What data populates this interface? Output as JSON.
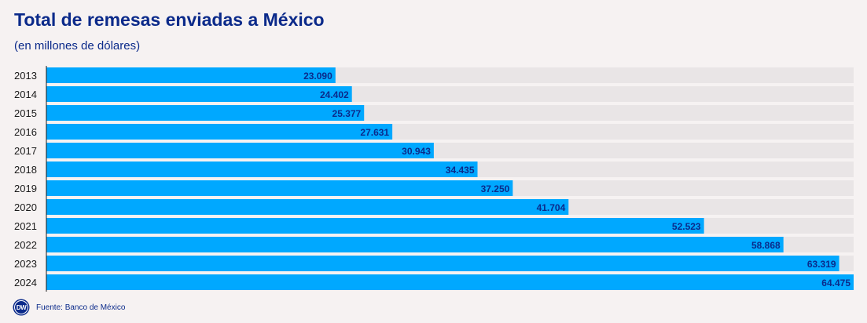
{
  "header": {
    "title": "Total de remesas enviadas a México",
    "subtitle": "(en millones de dólares)"
  },
  "footer": {
    "logo_text": "DW",
    "source": "Fuente: Banco de México"
  },
  "colors": {
    "bar": "#00a8ff",
    "track": "#e9e5e6",
    "label": "#0b2a8a",
    "tick": "#1a1a1a"
  },
  "chart_data": {
    "type": "bar",
    "orientation": "horizontal",
    "title": "Total de remesas enviadas a México",
    "subtitle": "(en millones de dólares)",
    "categories": [
      "2013",
      "2014",
      "2015",
      "2016",
      "2017",
      "2018",
      "2019",
      "2020",
      "2021",
      "2022",
      "2023",
      "2024"
    ],
    "values": [
      23090,
      24402,
      25377,
      27631,
      30943,
      34435,
      37250,
      41704,
      52523,
      58868,
      63319,
      64475
    ],
    "value_labels": [
      "23.090",
      "24.402",
      "25.377",
      "27.631",
      "30.943",
      "34.435",
      "37.250",
      "41.704",
      "52.523",
      "58.868",
      "63.319",
      "64.475"
    ],
    "xlim": [
      0,
      64475
    ],
    "grid": false,
    "legend": "none"
  }
}
